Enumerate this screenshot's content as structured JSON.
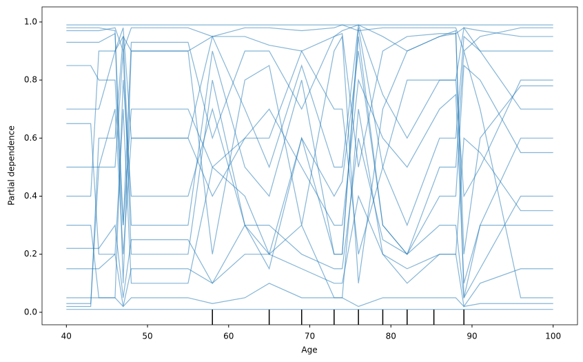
{
  "chart_data": {
    "type": "line",
    "xlabel": "Age",
    "ylabel": "Partial dependence",
    "color": "#1f77b4",
    "xlim": [
      37,
      103
    ],
    "xticks": [
      40,
      50,
      60,
      70,
      80,
      90,
      100
    ],
    "ylim": [
      -0.043,
      1.052
    ],
    "yticks": [
      {
        "value": 0,
        "label": "0.0"
      },
      {
        "value": 0.2,
        "label": "0.2"
      },
      {
        "value": 0.4,
        "label": "0.4"
      },
      {
        "value": 0.6,
        "label": "0.6"
      },
      {
        "value": 0.8,
        "label": "0.8"
      },
      {
        "value": 1,
        "label": "1.0"
      }
    ],
    "deciles": [
      58,
      65,
      69,
      73,
      76,
      79,
      82,
      85.3,
      89
    ],
    "x": [
      40,
      43,
      44,
      46,
      47,
      48,
      55,
      58,
      62,
      65,
      69,
      73,
      74,
      76,
      79,
      82,
      86,
      88,
      89,
      91,
      96,
      100
    ],
    "series": [
      {
        "values": [
          0.01,
          0.01,
          0.01,
          0.01,
          0.01,
          0.01,
          0.01,
          0.01,
          0.01,
          0.01,
          0.01,
          0.01,
          0.01,
          0.01,
          0.01,
          0.01,
          0.01,
          0.01,
          0.01,
          0.01,
          0.01,
          0.01
        ]
      },
      {
        "values": [
          0.99,
          0.99,
          0.99,
          0.99,
          0.99,
          0.99,
          0.99,
          0.99,
          0.99,
          0.99,
          0.99,
          0.99,
          0.99,
          0.99,
          0.99,
          0.99,
          0.99,
          0.99,
          0.99,
          0.99,
          0.99,
          0.99
        ]
      },
      {
        "values": [
          0.98,
          0.98,
          0.98,
          0.97,
          0.1,
          0.9,
          0.9,
          0.2,
          0.8,
          0.85,
          0.3,
          0.9,
          0.95,
          0.1,
          0.7,
          0.9,
          0.95,
          0.97,
          0.05,
          0.3,
          0.3,
          0.3
        ]
      },
      {
        "values": [
          0.02,
          0.02,
          0.6,
          0.6,
          0.95,
          0.3,
          0.3,
          0.9,
          0.5,
          0.4,
          0.8,
          0.2,
          0.2,
          0.98,
          0.5,
          0.3,
          0.6,
          0.6,
          0.95,
          0.9,
          0.9,
          0.9
        ]
      },
      {
        "values": [
          0.5,
          0.5,
          0.5,
          0.7,
          0.2,
          0.6,
          0.6,
          0.4,
          0.6,
          0.7,
          0.5,
          0.3,
          0.3,
          0.8,
          0.6,
          0.5,
          0.7,
          0.75,
          0.1,
          0.3,
          0.6,
          0.6
        ]
      },
      {
        "values": [
          0.85,
          0.85,
          0.8,
          0.8,
          0.3,
          0.7,
          0.7,
          0.5,
          0.6,
          0.6,
          0.9,
          0.7,
          0.7,
          0.2,
          0.5,
          0.8,
          0.8,
          0.8,
          0.4,
          0.5,
          0.8,
          0.8
        ]
      },
      {
        "values": [
          0.3,
          0.3,
          0.05,
          0.05,
          0.8,
          0.4,
          0.4,
          0.7,
          0.3,
          0.2,
          0.6,
          0.4,
          0.45,
          0.9,
          0.3,
          0.2,
          0.4,
          0.4,
          0.85,
          0.8,
          0.55,
          0.55
        ]
      },
      {
        "values": [
          0.15,
          0.15,
          0.15,
          0.2,
          0.02,
          0.15,
          0.15,
          0.1,
          0.2,
          0.2,
          0.15,
          0.1,
          0.1,
          0.4,
          0.2,
          0.15,
          0.2,
          0.2,
          0.02,
          0.1,
          0.15,
          0.15
        ]
      },
      {
        "values": [
          0.7,
          0.7,
          0.7,
          0.9,
          0.95,
          0.9,
          0.9,
          0.95,
          0.95,
          0.92,
          0.9,
          0.95,
          0.97,
          0.99,
          0.95,
          0.9,
          0.95,
          0.96,
          0.98,
          0.97,
          0.95,
          0.95
        ]
      },
      {
        "values": [
          0.05,
          0.05,
          0.05,
          0.05,
          0.02,
          0.05,
          0.05,
          0.03,
          0.05,
          0.1,
          0.05,
          0.05,
          0.05,
          0.02,
          0.05,
          0.05,
          0.05,
          0.05,
          0.02,
          0.03,
          0.03,
          0.03
        ]
      },
      {
        "values": [
          0.4,
          0.4,
          0.9,
          0.9,
          0.98,
          0.6,
          0.6,
          0.95,
          0.7,
          0.5,
          0.85,
          0.5,
          0.5,
          0.99,
          0.75,
          0.6,
          0.8,
          0.8,
          0.98,
          0.9,
          0.7,
          0.7
        ]
      },
      {
        "values": [
          0.93,
          0.93,
          0.93,
          0.96,
          0.3,
          0.93,
          0.93,
          0.6,
          0.9,
          0.9,
          0.7,
          0.95,
          0.96,
          0.5,
          0.9,
          0.95,
          0.96,
          0.96,
          0.2,
          0.6,
          0.78,
          0.78
        ]
      },
      {
        "values": [
          0.22,
          0.22,
          0.22,
          0.3,
          0.05,
          0.25,
          0.25,
          0.1,
          0.3,
          0.3,
          0.2,
          0.15,
          0.15,
          0.6,
          0.25,
          0.2,
          0.3,
          0.3,
          0.05,
          0.15,
          0.4,
          0.4
        ]
      },
      {
        "values": [
          0.65,
          0.65,
          0.2,
          0.2,
          0.7,
          0.1,
          0.1,
          0.5,
          0.4,
          0.2,
          0.3,
          0.05,
          0.05,
          0.7,
          0.2,
          0.1,
          0.2,
          0.2,
          0.6,
          0.55,
          0.35,
          0.35
        ]
      },
      {
        "values": [
          0.97,
          0.97,
          0.97,
          0.98,
          0.9,
          0.98,
          0.98,
          0.95,
          0.98,
          0.98,
          0.97,
          0.98,
          0.99,
          0.97,
          0.98,
          0.98,
          0.98,
          0.98,
          0.9,
          0.95,
          0.98,
          0.98
        ]
      },
      {
        "values": [
          0.03,
          0.03,
          0.5,
          0.5,
          0.9,
          0.2,
          0.2,
          0.8,
          0.3,
          0.15,
          0.6,
          0.2,
          0.2,
          0.95,
          0.3,
          0.2,
          0.5,
          0.5,
          0.9,
          0.7,
          0.05,
          0.05
        ]
      }
    ]
  }
}
